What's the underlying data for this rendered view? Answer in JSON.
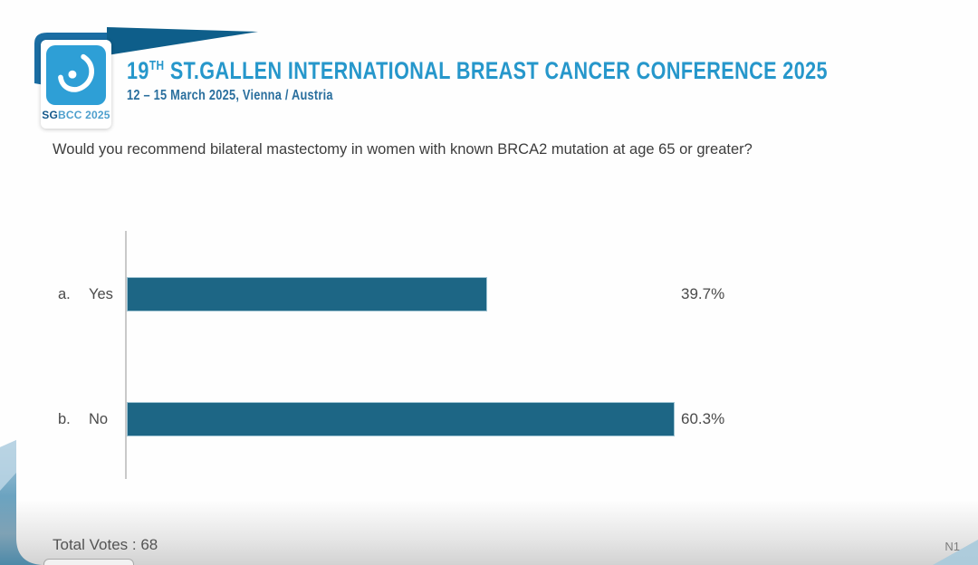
{
  "header": {
    "logo": {
      "sg": "SG",
      "bcc": "BCC 2025",
      "square_color": "#2e9fd6"
    },
    "title_num": "19",
    "title_sup": "TH",
    "title_rest": " ST.GALLEN INTERNATIONAL BREAST CANCER CONFERENCE 2025",
    "subtitle": "12 – 15 March 2025, Vienna / Austria"
  },
  "question": "Would you recommend bilateral mastectomy in women with known BRCA2 mutation at age 65 or greater?",
  "chart_data": {
    "type": "bar",
    "orientation": "horizontal",
    "option_letters": [
      "a.",
      "b."
    ],
    "categories": [
      "Yes",
      "No"
    ],
    "values": [
      39.7,
      60.3
    ],
    "value_labels": [
      "39.7%",
      "60.3%"
    ],
    "xlim": [
      0,
      100
    ],
    "grid": false,
    "legend": false,
    "bar_color": "#1d6685",
    "total_votes": 68
  },
  "footer": {
    "total_votes_label": "Total Votes : 68",
    "slide_ref": "N1"
  },
  "colors": {
    "accent_blue": "#2697cb",
    "dark_ribbon": "#0e5e8a",
    "left_wedge": "#1a6da3",
    "bar": "#1d6685",
    "axis": "#c9c9c9",
    "text": "#3d3d3d"
  }
}
